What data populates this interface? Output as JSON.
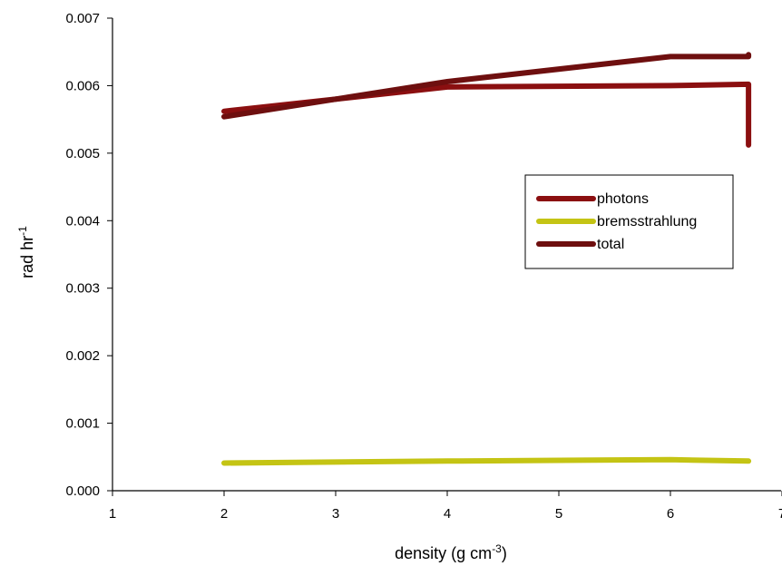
{
  "chart_data": {
    "type": "line",
    "title": "",
    "xlabel": {
      "base": "density (g cm",
      "sup": "-3",
      "tail": ")"
    },
    "ylabel": {
      "base": "rad hr",
      "sup": "-1"
    },
    "xlim": [
      1,
      7
    ],
    "ylim": [
      0,
      0.007
    ],
    "xticks": [
      "1",
      "2",
      "3",
      "4",
      "5",
      "6",
      "7"
    ],
    "yticks": [
      "0.000",
      "0.001",
      "0.002",
      "0.003",
      "0.004",
      "0.005",
      "0.006",
      "0.007"
    ],
    "grid": false,
    "legend_position": "right",
    "series": [
      {
        "name": "photons",
        "color": "#8b0f10",
        "points": [
          [
            2,
            0.00562
          ],
          [
            4,
            0.00598
          ],
          [
            6,
            0.006
          ],
          [
            6.7,
            0.00602
          ],
          [
            6.7,
            0.00512
          ]
        ]
      },
      {
        "name": "bremsstrahlung",
        "color": "#c4c414",
        "points": [
          [
            2,
            0.00041
          ],
          [
            4,
            0.00044
          ],
          [
            6,
            0.00046
          ],
          [
            6.7,
            0.00044
          ]
        ]
      },
      {
        "name": "total",
        "color": "#6e0f0f",
        "points": [
          [
            2,
            0.00554
          ],
          [
            3,
            0.0058
          ],
          [
            4,
            0.00606
          ],
          [
            6,
            0.00643
          ],
          [
            6.7,
            0.00643
          ],
          [
            6.7,
            0.00646
          ]
        ]
      }
    ]
  }
}
